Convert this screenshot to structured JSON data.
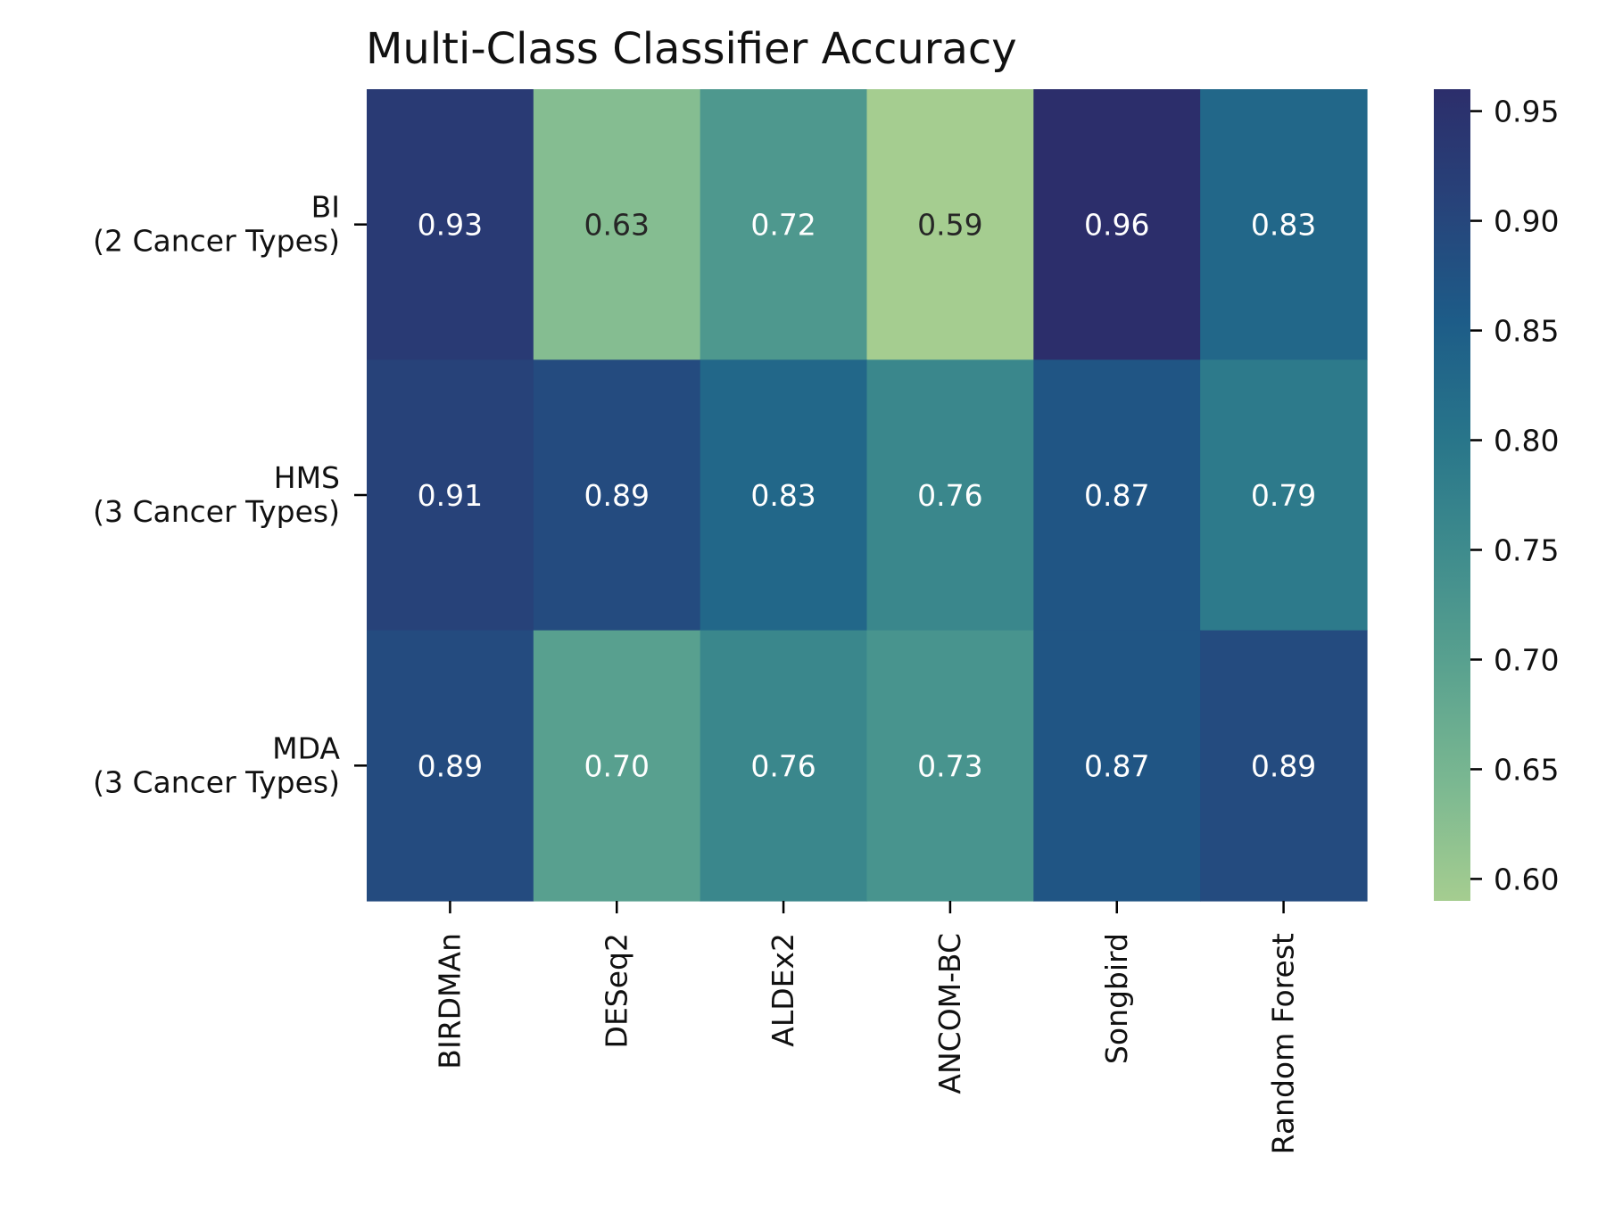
{
  "chart_data": {
    "type": "heatmap",
    "title": "Multi-Class Classifier Accuracy",
    "xlabel": "",
    "ylabel": "",
    "columns": [
      "BIRDMAn",
      "DESeq2",
      "ALDEx2",
      "ANCOM-BC",
      "Songbird",
      "Random Forest"
    ],
    "rows": [
      {
        "label": [
          "BI",
          "(2 Cancer Types)"
        ],
        "values": [
          0.93,
          0.63,
          0.72,
          0.59,
          0.96,
          0.83
        ]
      },
      {
        "label": [
          "HMS",
          "(3 Cancer Types)"
        ],
        "values": [
          0.91,
          0.89,
          0.83,
          0.76,
          0.87,
          0.79
        ]
      },
      {
        "label": [
          "MDA",
          "(3 Cancer Types)"
        ],
        "values": [
          0.89,
          0.7,
          0.76,
          0.73,
          0.87,
          0.89
        ]
      }
    ],
    "value_format": "0.00",
    "colorbar": {
      "range": [
        0.59,
        0.96
      ],
      "ticks": [
        "0.60",
        "0.65",
        "0.70",
        "0.75",
        "0.80",
        "0.85",
        "0.90",
        "0.95"
      ],
      "colormap": "crest",
      "stops": [
        "#a5cd90",
        "#7bb891",
        "#5aa28f",
        "#3f8c8d",
        "#28758a",
        "#1d5c88",
        "#27437a",
        "#2c2e6b"
      ],
      "placement": "right"
    },
    "annotation_colors": {
      "dark": "#262626",
      "light": "#ffffff"
    }
  }
}
